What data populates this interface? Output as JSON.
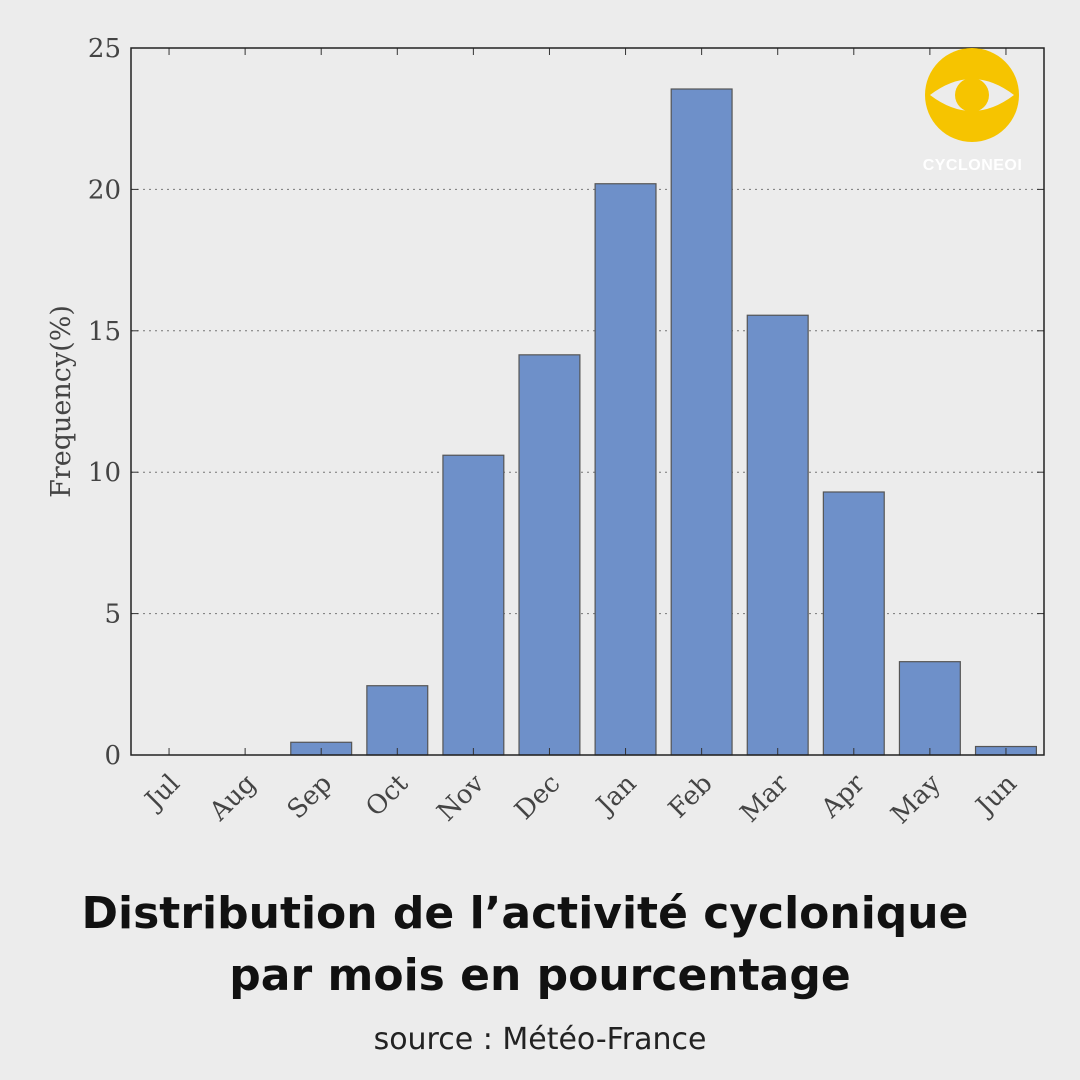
{
  "chart_data": {
    "type": "bar",
    "categories": [
      "Jul",
      "Aug",
      "Sep",
      "Oct",
      "Nov",
      "Dec",
      "Jan",
      "Feb",
      "Mar",
      "Apr",
      "May",
      "Jun"
    ],
    "values": [
      0,
      0,
      0.45,
      2.45,
      10.6,
      14.15,
      20.2,
      23.55,
      15.55,
      9.3,
      3.3,
      0.3
    ],
    "ylabel": "Frequency(%)",
    "xlabel": "",
    "ylim": [
      0,
      25
    ],
    "yticks": [
      0,
      5,
      10,
      15,
      20,
      25
    ],
    "grid": "horizontal dotted",
    "bar_color": "#6e90c9",
    "bar_edge": "#555555"
  },
  "logo": {
    "text": "CYCLONEOI",
    "color": "#f6c400"
  },
  "caption": {
    "title_line1": "Distribution de l’activité cyclonique",
    "title_line2": "par mois en pourcentage",
    "source": "source : Météo-France"
  }
}
